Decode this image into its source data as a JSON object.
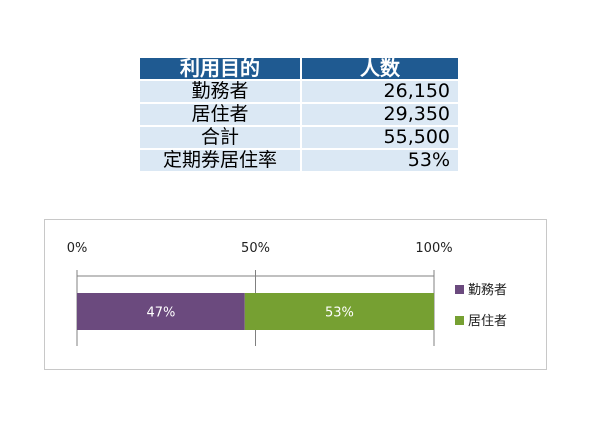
{
  "table": {
    "headers": [
      "利用目的",
      "人数"
    ],
    "rows": [
      [
        "勤務者",
        "26,150"
      ],
      [
        "居住者",
        "29,350"
      ],
      [
        "合計",
        "55,500"
      ],
      [
        "定期券居住率",
        "53%"
      ]
    ]
  },
  "chart_data": {
    "type": "bar",
    "orientation": "horizontal",
    "stacked": "percent",
    "categories": [
      ""
    ],
    "series": [
      {
        "name": "勤務者",
        "values": [
          47
        ],
        "label": "47%",
        "color": "#6b4a7e"
      },
      {
        "name": "居住者",
        "values": [
          53
        ],
        "label": "53%",
        "color": "#76a032"
      }
    ],
    "xlim": [
      0,
      100
    ],
    "ticks": [
      "0%",
      "50%",
      "100%"
    ],
    "legend": "right",
    "grid": true
  }
}
